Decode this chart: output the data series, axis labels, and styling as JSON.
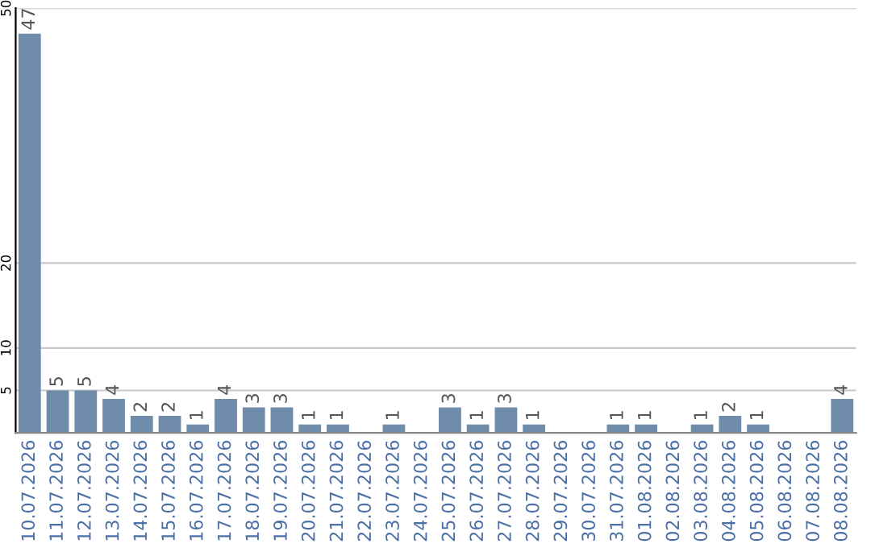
{
  "chart_data": {
    "type": "bar",
    "categories": [
      "10.07.2026",
      "11.07.2026",
      "12.07.2026",
      "13.07.2026",
      "14.07.2026",
      "15.07.2026",
      "16.07.2026",
      "17.07.2026",
      "18.07.2026",
      "19.07.2026",
      "20.07.2026",
      "21.07.2026",
      "22.07.2026",
      "23.07.2026",
      "24.07.2026",
      "25.07.2026",
      "26.07.2026",
      "27.07.2026",
      "28.07.2026",
      "29.07.2026",
      "30.07.2026",
      "31.07.2026",
      "01.08.2026",
      "02.08.2026",
      "03.08.2026",
      "04.08.2026",
      "05.08.2026",
      "06.08.2026",
      "07.08.2026",
      "08.08.2026"
    ],
    "values": [
      47,
      5,
      5,
      4,
      2,
      2,
      1,
      4,
      3,
      3,
      1,
      1,
      0,
      1,
      0,
      3,
      1,
      3,
      1,
      0,
      0,
      1,
      1,
      0,
      1,
      2,
      1,
      0,
      0,
      4
    ],
    "value_labels": [
      "47",
      "5",
      "5",
      "4",
      "2",
      "2",
      "1",
      "4",
      "3",
      "3",
      "1",
      "1",
      null,
      "1",
      null,
      "3",
      "1",
      "3",
      "1",
      null,
      null,
      "1",
      "1",
      null,
      "1",
      "2",
      "1",
      null,
      null,
      "4"
    ],
    "color": "#6f8cab",
    "ylim": [
      0,
      50
    ],
    "yticks": [
      5,
      10,
      20,
      50
    ],
    "grid": "y",
    "legend": false
  }
}
